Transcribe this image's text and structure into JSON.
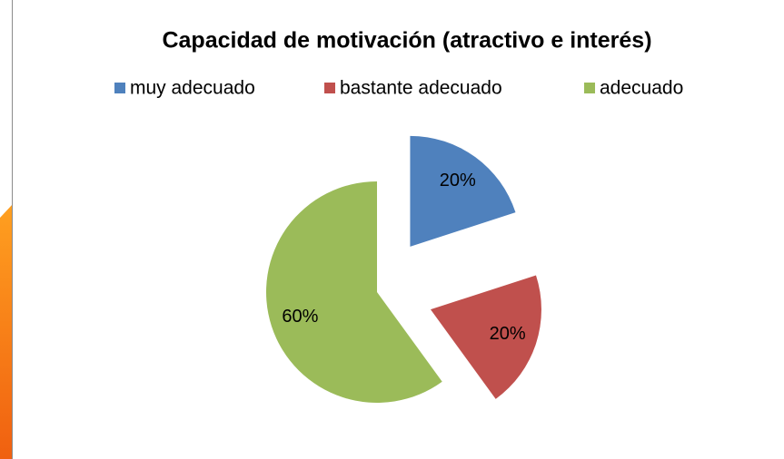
{
  "chart_data": {
    "type": "pie",
    "title": "Capacidad de motivación (atractivo e interés)",
    "categories": [
      "muy adecuado",
      "bastante adecuado",
      "adecuado"
    ],
    "values": [
      20,
      20,
      60
    ],
    "value_labels": [
      "20%",
      "20%",
      "60%"
    ],
    "colors": [
      "#4f81bd",
      "#c0504d",
      "#9bbb59"
    ],
    "legend": "top"
  }
}
